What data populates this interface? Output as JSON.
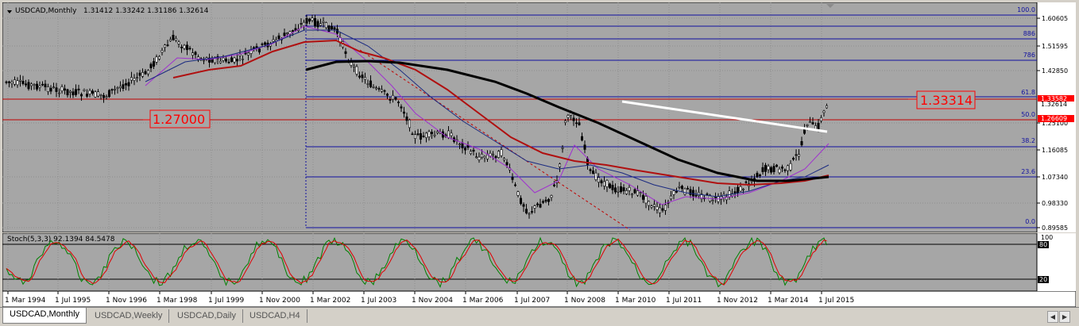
{
  "header": {
    "symbol_label": "USDCAD,Monthly",
    "ohlc": "1.31412 1.33242 1.31186 1.32614"
  },
  "price_axis": {
    "ticks": [
      "1.60605",
      "1.51595",
      "1.42850",
      "1.25100",
      "1.16085",
      "1.07340",
      "0.98330",
      "0.89585"
    ],
    "price_labels": {
      "upper": "1.33582",
      "upper_bg": "1.32614",
      "lower": "1.26609"
    }
  },
  "annotations": {
    "level_right": "1.33314",
    "level_left": "1.27000"
  },
  "fibonacci": {
    "levels": [
      "100.0",
      "886",
      "786",
      "61.8",
      "50.0",
      "38.2",
      "23.6",
      "0.0"
    ]
  },
  "stochastic": {
    "label": "Stoch(5,3,3) 92.1394 84.5478",
    "axis": [
      "100",
      "80",
      "20"
    ]
  },
  "date_axis": {
    "labels": [
      "1 Mar 1994",
      "1 Jul 1995",
      "1 Nov 1996",
      "1 Mar 1998",
      "1 Jul 1999",
      "1 Nov 2000",
      "1 Mar 2002",
      "1 Jul 2003",
      "1 Nov 2004",
      "1 Mar 2006",
      "1 Jul 2007",
      "1 Nov 2008",
      "1 Mar 2010",
      "1 Jul 2011",
      "1 Nov 2012",
      "1 Mar 2014",
      "1 Jul 2015"
    ]
  },
  "tabs": [
    {
      "label": "USDCAD,Monthly",
      "active": true
    },
    {
      "label": "USDCAD,Weekly",
      "active": false
    },
    {
      "label": "USDCAD,Daily",
      "active": false
    },
    {
      "label": "USDCAD,H4",
      "active": false
    }
  ],
  "colors": {
    "chart_bg": "#a6a6a6",
    "fib_line": "#1010a0",
    "ma_red": "#b01010",
    "ma_black": "#000000",
    "trend_white": "#ffffff",
    "stoch_main": "#008000",
    "stoch_signal": "#e00000"
  }
}
